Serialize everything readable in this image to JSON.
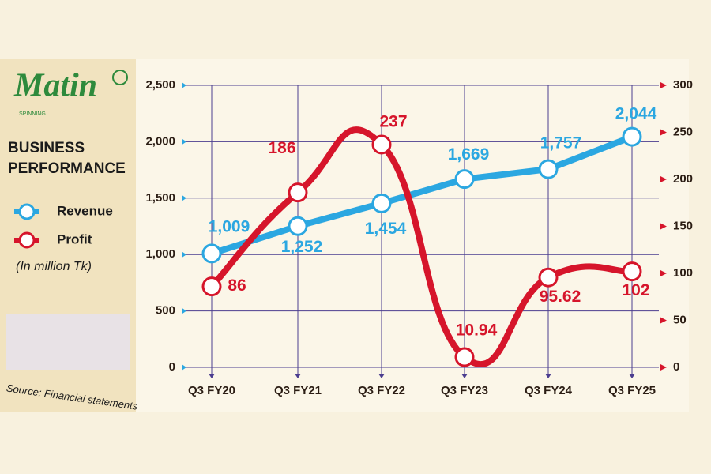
{
  "logo": {
    "name": "Matin",
    "tagline": "SPINNING"
  },
  "chart_data": {
    "type": "line",
    "title": "BUSINESS PERFORMANCE",
    "subtitle": "(In million Tk)",
    "source": "Source: Financial statements",
    "categories": [
      "Q3 FY20",
      "Q3 FY21",
      "Q3 FY22",
      "Q3 FY23",
      "Q3 FY24",
      "Q3 FY25"
    ],
    "series": [
      {
        "name": "Revenue",
        "color": "#2ba7e1",
        "values": [
          1009,
          1252,
          1454,
          1669,
          1757,
          2044
        ],
        "value_labels": [
          "1,009",
          "1,252",
          "1,454",
          "1,669",
          "1,757",
          "2,044"
        ]
      },
      {
        "name": "Profit",
        "color": "#d6152b",
        "axis": "y2",
        "smooth": true,
        "values": [
          86,
          186,
          237,
          10.94,
          95.62,
          102
        ]
      }
    ],
    "ylim": [
      0,
      2500
    ],
    "yticks": [
      0,
      500,
      {
        "value": 1000,
        "label": "1,000"
      },
      {
        "value": 1500,
        "label": "1,500"
      },
      {
        "value": 2000,
        "label": "2,000"
      },
      {
        "value": 2500,
        "label": "2,500"
      }
    ],
    "y2lim": [
      0,
      300
    ],
    "y2ticks": [
      0,
      50,
      100,
      150,
      200,
      250,
      300
    ],
    "grid": true
  }
}
